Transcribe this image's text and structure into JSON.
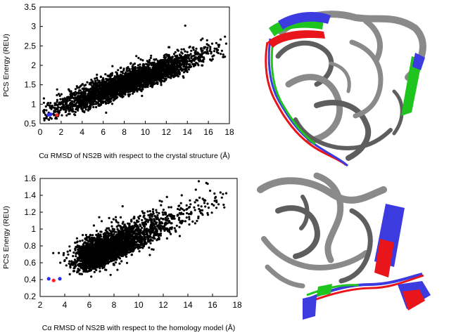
{
  "chart_data": [
    {
      "type": "scatter",
      "xlabel": "Cα RMSD of NS2B with respect to the crystal structure (Å)",
      "ylabel": "PCS Energy (REU)",
      "xlim": [
        0,
        18
      ],
      "ylim": [
        0.5,
        3.5
      ],
      "xticks": [
        0,
        2,
        4,
        6,
        8,
        10,
        12,
        14,
        16,
        18
      ],
      "yticks": [
        0.5,
        1,
        1.5,
        2,
        2.5,
        3,
        3.5
      ],
      "grid": false,
      "series": [
        {
          "color": "#000000",
          "cloud": {
            "center": [
              8.5,
              1.3
            ],
            "trend": [
              [
                0.6,
                0.75
              ],
              [
                17,
                2.45
              ]
            ],
            "count": 3200
          },
          "outliers": [
            [
              13.8,
              3.02
            ],
            [
              15.3,
              2.65
            ],
            [
              16.8,
              2.4
            ],
            [
              11.8,
              2.25
            ],
            [
              9.5,
              2.02
            ],
            [
              5.5,
              1.55
            ],
            [
              12.4,
              2.0
            ],
            [
              14.6,
              2.4
            ]
          ]
        },
        {
          "color": "#2b2bff",
          "points": [
            [
              0.8,
              0.73
            ],
            [
              1.0,
              0.74
            ]
          ]
        },
        {
          "color": "#ff2020",
          "points": [
            [
              1.6,
              0.72
            ]
          ]
        }
      ]
    },
    {
      "type": "scatter",
      "xlabel": "Cα RMSD of NS2B with respect to the homology model (Å)",
      "ylabel": "PCS Energy (REU)",
      "xlim": [
        2,
        18
      ],
      "ylim": [
        0.2,
        1.6
      ],
      "xticks": [
        2,
        4,
        6,
        8,
        10,
        12,
        14,
        16,
        18
      ],
      "yticks": [
        0.2,
        0.4,
        0.6,
        0.8,
        1,
        1.2,
        1.4,
        1.6
      ],
      "grid": false,
      "series": [
        {
          "color": "#000000",
          "cloud": {
            "center": [
              6.0,
              0.68
            ],
            "trend": [
              [
                2.6,
                0.42
              ],
              [
                16.0,
                1.32
              ]
            ],
            "count": 3200
          },
          "outliers": [
            [
              13.5,
              1.4
            ],
            [
              12.3,
              1.38
            ],
            [
              16.1,
              1.28
            ],
            [
              8.7,
              1.27
            ],
            [
              6.8,
              1.14
            ],
            [
              15.6,
              1.3
            ]
          ]
        },
        {
          "color": "#2b2bff",
          "points": [
            [
              2.7,
              0.41
            ],
            [
              3.6,
              0.41
            ]
          ]
        },
        {
          "color": "#ff2020",
          "points": [
            [
              3.1,
              0.39
            ]
          ]
        }
      ]
    }
  ],
  "structure_colors": {
    "gray": "#8a8a8a",
    "red": "#e8161a",
    "green": "#1fc41f",
    "blue": "#3b3be0"
  }
}
